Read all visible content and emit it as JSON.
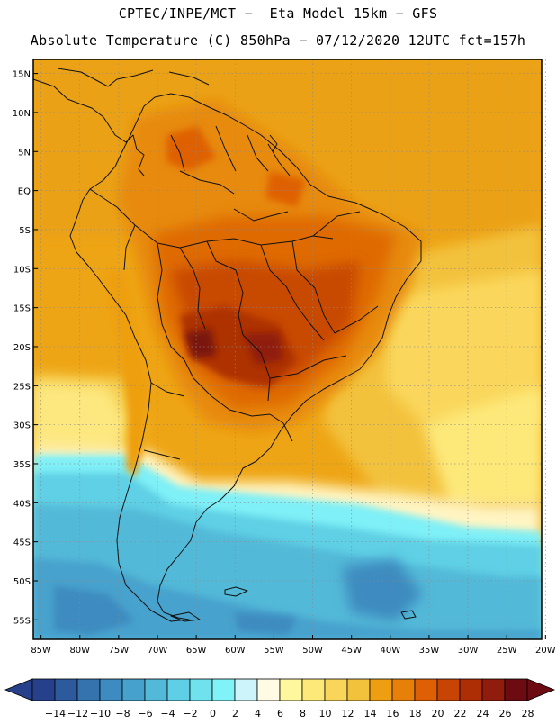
{
  "header": {
    "line1": "CPTEC/INPE/MCT −  Eta Model 15km − GFS",
    "line2": "Absolute Temperature (C) 850hPa − 07/12/2020 12UTC fct=157h"
  },
  "map": {
    "lat_labels": [
      "15N",
      "10N",
      "5N",
      "EQ",
      "5S",
      "10S",
      "15S",
      "20S",
      "25S",
      "30S",
      "35S",
      "40S",
      "45S",
      "50S",
      "55S"
    ],
    "lat_values": [
      15,
      10,
      5,
      0,
      -5,
      -10,
      -15,
      -20,
      -25,
      -30,
      -35,
      -40,
      -45,
      -50,
      -55
    ],
    "lon_labels": [
      "85W",
      "80W",
      "75W",
      "70W",
      "65W",
      "60W",
      "55W",
      "50W",
      "45W",
      "40W",
      "35W",
      "30W",
      "25W",
      "20W"
    ],
    "lon_values": [
      -85,
      -80,
      -75,
      -70,
      -65,
      -60,
      -55,
      -50,
      -45,
      -40,
      -35,
      -30,
      -25,
      -20
    ],
    "lat_range": [
      -57.5,
      16.8
    ],
    "lon_range": [
      -86,
      -20.5
    ]
  },
  "legend": {
    "labels": [
      "-14",
      "-12",
      "-10",
      "-8",
      "-6",
      "-4",
      "-2",
      "0",
      "2",
      "4",
      "6",
      "8",
      "10",
      "12",
      "14",
      "16",
      "18",
      "20",
      "22",
      "24",
      "26",
      "28"
    ],
    "colors": [
      "#27408b",
      "#2d5a9d",
      "#3473ae",
      "#3d8bc0",
      "#46a2cd",
      "#52b9d8",
      "#5ecfe4",
      "#6fe2ee",
      "#7ff3f8",
      "#cdf4fb",
      "#fffbe4",
      "#fff79e",
      "#fde97a",
      "#f9d65a",
      "#f2c23c",
      "#ee9f11",
      "#e78008",
      "#df6004",
      "#c84404",
      "#ad2d04",
      "#8f1c0c",
      "#6c0c12"
    ]
  }
}
